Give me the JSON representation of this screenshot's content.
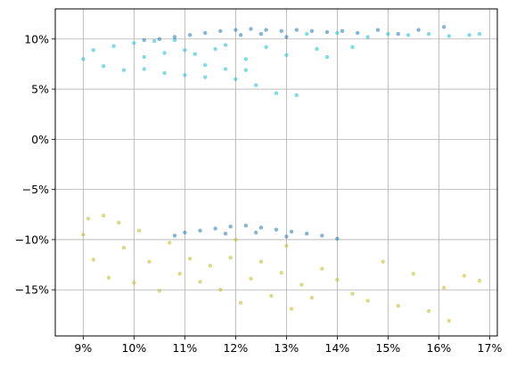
{
  "chart_data": {
    "type": "scatter",
    "title": "",
    "xlabel": "",
    "ylabel": "",
    "xlim": [
      8.45,
      17.15
    ],
    "ylim": [
      -19.6,
      13.0
    ],
    "grid": true,
    "x_ticks": [
      {
        "value": 9,
        "label": "9%"
      },
      {
        "value": 10,
        "label": "10%"
      },
      {
        "value": 11,
        "label": "11%"
      },
      {
        "value": 12,
        "label": "12%"
      },
      {
        "value": 13,
        "label": "13%"
      },
      {
        "value": 14,
        "label": "14%"
      },
      {
        "value": 15,
        "label": "15%"
      },
      {
        "value": 16,
        "label": "16%"
      },
      {
        "value": 17,
        "label": "17%"
      }
    ],
    "y_ticks": [
      {
        "value": 10,
        "label": "10%"
      },
      {
        "value": 5,
        "label": "5%"
      },
      {
        "value": 0,
        "label": "0%"
      },
      {
        "value": -5,
        "label": "−5%"
      },
      {
        "value": -10,
        "label": "−10%"
      },
      {
        "value": -15,
        "label": "−15%"
      }
    ],
    "colors": {
      "upper_light": "#17becf",
      "upper_dark": "#1f77b4",
      "lower_light": "#bcbd22",
      "lower_dark": "#1f77b4"
    },
    "series": [
      {
        "color_key": "upper_light",
        "points": [
          [
            9.0,
            8.0
          ],
          [
            9.2,
            8.9
          ],
          [
            9.4,
            7.3
          ],
          [
            9.6,
            9.3
          ],
          [
            9.8,
            6.9
          ],
          [
            10.0,
            9.6
          ],
          [
            10.2,
            7.0
          ],
          [
            10.4,
            9.8
          ],
          [
            10.6,
            6.6
          ],
          [
            10.8,
            9.9
          ],
          [
            11.0,
            6.4
          ],
          [
            11.2,
            8.5
          ],
          [
            11.4,
            6.2
          ],
          [
            11.6,
            9.0
          ],
          [
            11.8,
            7.0
          ],
          [
            12.0,
            6.0
          ],
          [
            12.2,
            8.0
          ],
          [
            12.4,
            5.4
          ],
          [
            12.6,
            9.2
          ],
          [
            12.8,
            4.6
          ],
          [
            13.0,
            8.4
          ],
          [
            13.2,
            4.4
          ],
          [
            13.4,
            10.5
          ],
          [
            13.6,
            9.0
          ],
          [
            13.8,
            8.2
          ],
          [
            14.0,
            10.6
          ],
          [
            14.3,
            9.2
          ],
          [
            14.6,
            10.2
          ],
          [
            15.0,
            10.5
          ],
          [
            15.4,
            10.4
          ],
          [
            15.8,
            10.5
          ],
          [
            16.2,
            10.3
          ],
          [
            16.6,
            10.4
          ],
          [
            16.8,
            10.5
          ],
          [
            10.2,
            8.2
          ],
          [
            10.6,
            8.6
          ],
          [
            11.0,
            8.9
          ],
          [
            11.4,
            7.4
          ],
          [
            11.8,
            9.4
          ],
          [
            12.2,
            6.9
          ]
        ]
      },
      {
        "color_key": "upper_dark",
        "points": [
          [
            10.2,
            9.9
          ],
          [
            10.5,
            10.0
          ],
          [
            10.8,
            10.2
          ],
          [
            11.1,
            10.4
          ],
          [
            11.4,
            10.6
          ],
          [
            11.7,
            10.8
          ],
          [
            12.0,
            10.9
          ],
          [
            12.3,
            11.0
          ],
          [
            12.6,
            10.9
          ],
          [
            12.9,
            10.8
          ],
          [
            13.2,
            10.9
          ],
          [
            13.5,
            10.8
          ],
          [
            13.8,
            10.7
          ],
          [
            14.1,
            10.8
          ],
          [
            14.4,
            10.6
          ],
          [
            14.8,
            10.9
          ],
          [
            15.2,
            10.5
          ],
          [
            15.6,
            10.9
          ],
          [
            16.1,
            11.2
          ],
          [
            12.1,
            10.4
          ],
          [
            12.5,
            10.5
          ],
          [
            13.0,
            10.2
          ]
        ]
      },
      {
        "color_key": "lower_light",
        "points": [
          [
            9.0,
            -9.5
          ],
          [
            9.1,
            -7.9
          ],
          [
            9.2,
            -12.0
          ],
          [
            9.4,
            -7.6
          ],
          [
            9.5,
            -13.8
          ],
          [
            9.7,
            -8.3
          ],
          [
            9.8,
            -10.8
          ],
          [
            10.0,
            -14.3
          ],
          [
            10.1,
            -9.1
          ],
          [
            10.3,
            -12.2
          ],
          [
            10.5,
            -15.1
          ],
          [
            10.7,
            -10.3
          ],
          [
            10.9,
            -13.4
          ],
          [
            11.1,
            -11.9
          ],
          [
            11.3,
            -14.2
          ],
          [
            11.5,
            -12.6
          ],
          [
            11.7,
            -15.0
          ],
          [
            11.9,
            -11.8
          ],
          [
            12.1,
            -16.3
          ],
          [
            12.3,
            -13.9
          ],
          [
            12.5,
            -12.2
          ],
          [
            12.7,
            -15.6
          ],
          [
            12.9,
            -13.3
          ],
          [
            13.1,
            -16.9
          ],
          [
            13.3,
            -14.5
          ],
          [
            13.5,
            -15.8
          ],
          [
            13.7,
            -12.9
          ],
          [
            14.0,
            -14.0
          ],
          [
            14.3,
            -15.4
          ],
          [
            14.6,
            -16.1
          ],
          [
            14.9,
            -12.2
          ],
          [
            15.2,
            -16.6
          ],
          [
            15.5,
            -13.4
          ],
          [
            15.8,
            -17.1
          ],
          [
            16.1,
            -14.8
          ],
          [
            16.2,
            -18.1
          ],
          [
            16.5,
            -13.6
          ],
          [
            16.8,
            -14.1
          ],
          [
            12.0,
            -10.0
          ],
          [
            13.0,
            -10.6
          ]
        ]
      },
      {
        "color_key": "lower_dark",
        "points": [
          [
            10.8,
            -9.6
          ],
          [
            11.0,
            -9.3
          ],
          [
            11.3,
            -9.1
          ],
          [
            11.6,
            -8.9
          ],
          [
            11.9,
            -8.7
          ],
          [
            12.2,
            -8.6
          ],
          [
            12.5,
            -8.8
          ],
          [
            12.8,
            -9.0
          ],
          [
            13.1,
            -9.2
          ],
          [
            13.4,
            -9.4
          ],
          [
            13.7,
            -9.6
          ],
          [
            14.0,
            -9.9
          ],
          [
            11.8,
            -9.4
          ],
          [
            12.4,
            -9.3
          ],
          [
            13.0,
            -9.7
          ]
        ]
      }
    ]
  }
}
